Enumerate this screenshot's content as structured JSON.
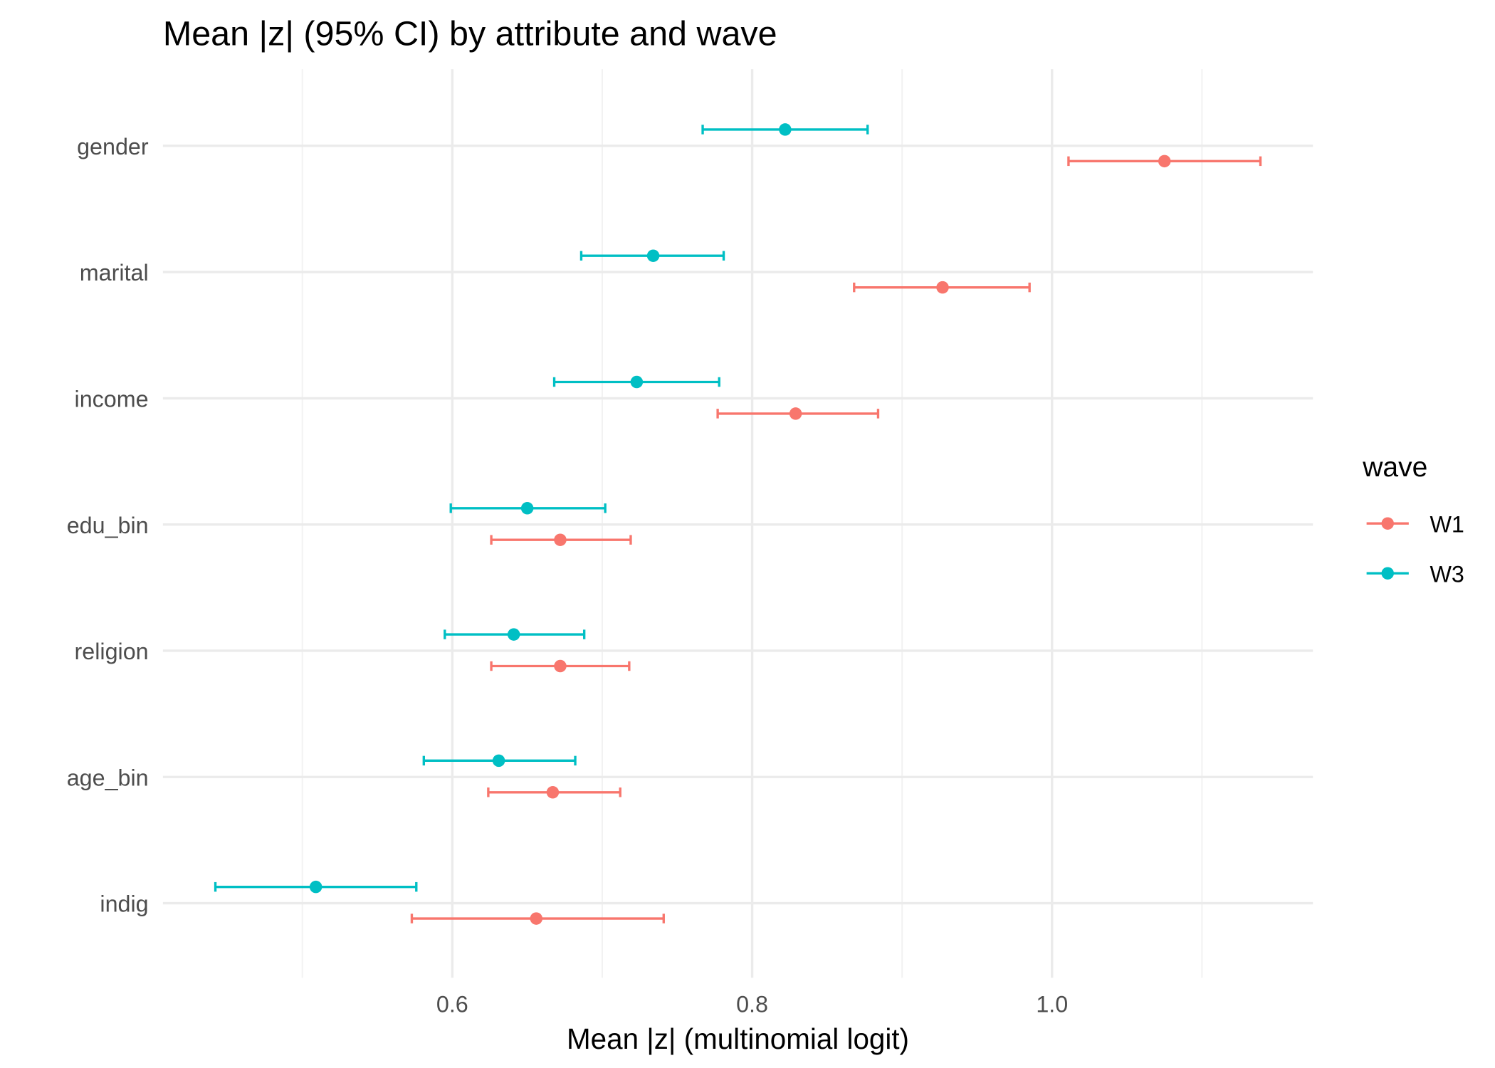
{
  "chart_data": {
    "type": "errorbar",
    "title": "Mean |z| (95% CI) by attribute and wave",
    "xlabel": "Mean |z| (multinomial logit)",
    "ylabel": "",
    "xlim": [
      0.407,
      1.174
    ],
    "x_ticks": [
      0.6,
      0.8,
      1.0
    ],
    "x_tick_labels": [
      "0.6",
      "0.8",
      "1.0"
    ],
    "grid": true,
    "categories": [
      "gender",
      "marital",
      "income",
      "edu_bin",
      "religion",
      "age_bin",
      "indig"
    ],
    "legend": {
      "title": "wave",
      "position": "right"
    },
    "series": [
      {
        "name": "W1",
        "color": "#F8766D",
        "mean": [
          1.075,
          0.927,
          0.829,
          0.672,
          0.672,
          0.667,
          0.656
        ],
        "lower": [
          1.011,
          0.868,
          0.777,
          0.626,
          0.626,
          0.624,
          0.573
        ],
        "upper": [
          1.139,
          0.985,
          0.884,
          0.719,
          0.718,
          0.712,
          0.741
        ]
      },
      {
        "name": "W3",
        "color": "#00BFC4",
        "mean": [
          0.822,
          0.734,
          0.723,
          0.65,
          0.641,
          0.631,
          0.509
        ],
        "lower": [
          0.767,
          0.686,
          0.668,
          0.599,
          0.595,
          0.581,
          0.442
        ],
        "upper": [
          0.877,
          0.781,
          0.778,
          0.702,
          0.688,
          0.682,
          0.576
        ]
      }
    ]
  }
}
